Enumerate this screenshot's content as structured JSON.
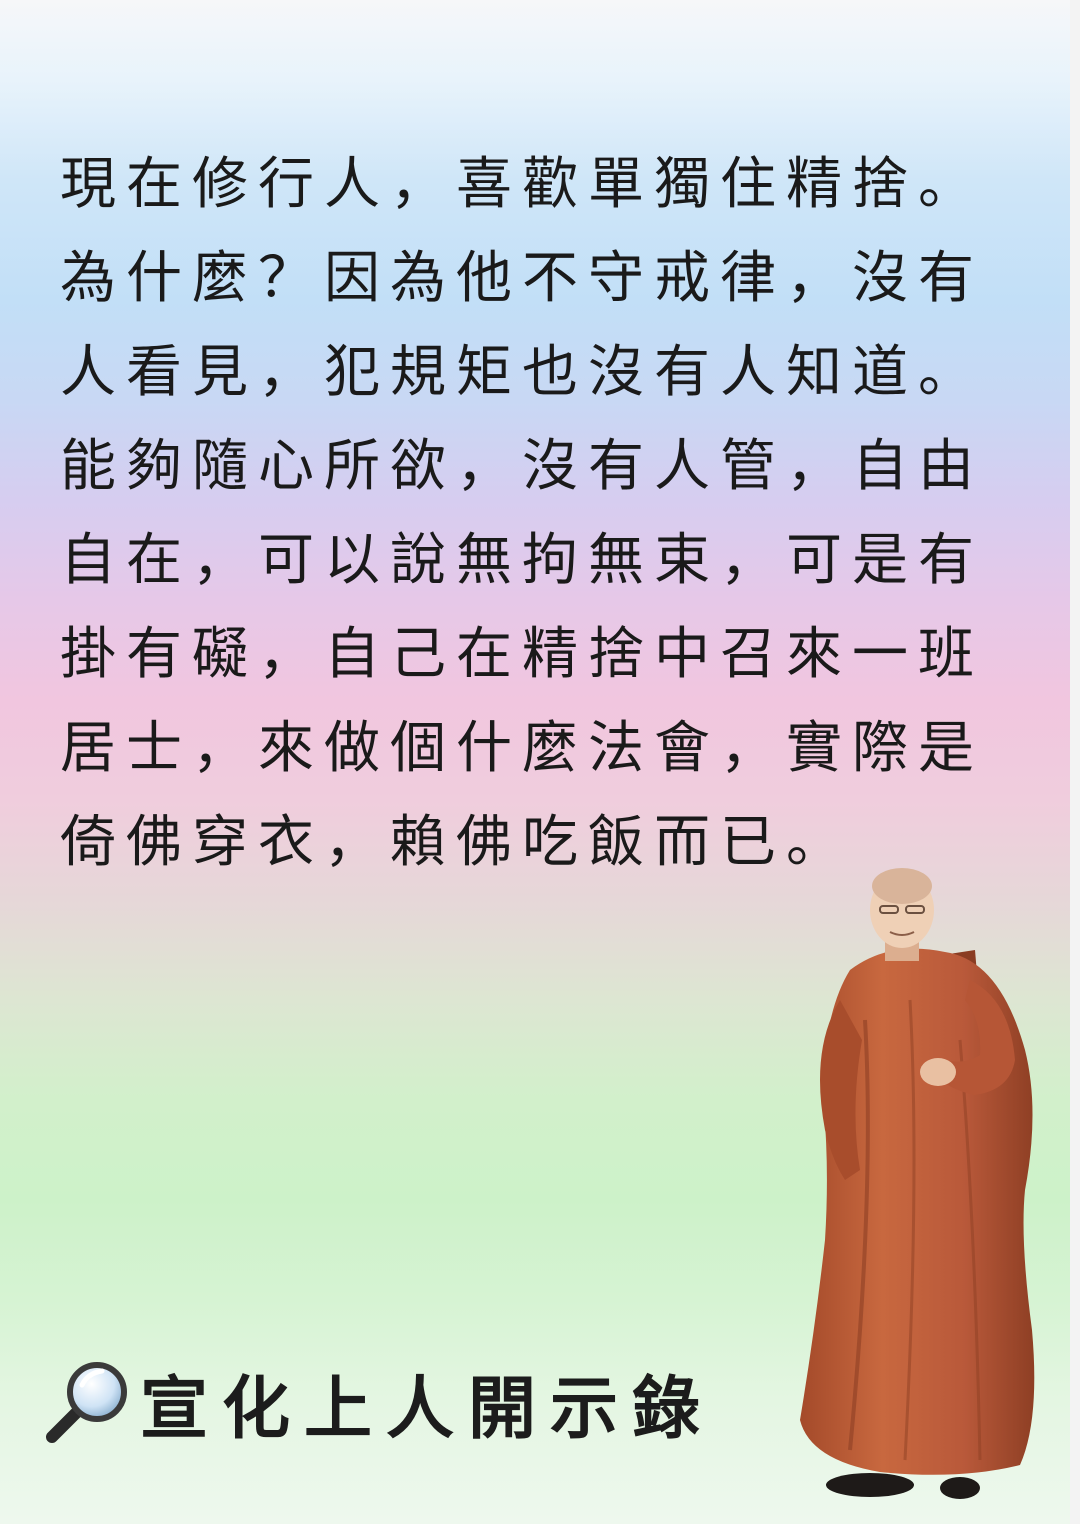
{
  "quote": {
    "lines": [
      "現在修行人，喜歡單獨住精捨。",
      "為什麼？因為他不守戒律，沒有",
      "人看見，犯規矩也沒有人知道。",
      "能夠隨心所欲，沒有人管，自由",
      "自在，可以說無拘無束，可是有",
      "掛有礙，自己在精捨中召來一班",
      "居士，來做個什麼法會，實際是",
      "倚佛穿衣，賴佛吃飯而已。"
    ]
  },
  "signature": {
    "icon": "magnifying-glass-icon",
    "text": "宣化上人開示錄"
  },
  "colors": {
    "text": "#1a1a1a",
    "robe": "#c0623d",
    "robe_dark": "#8e3f24"
  }
}
